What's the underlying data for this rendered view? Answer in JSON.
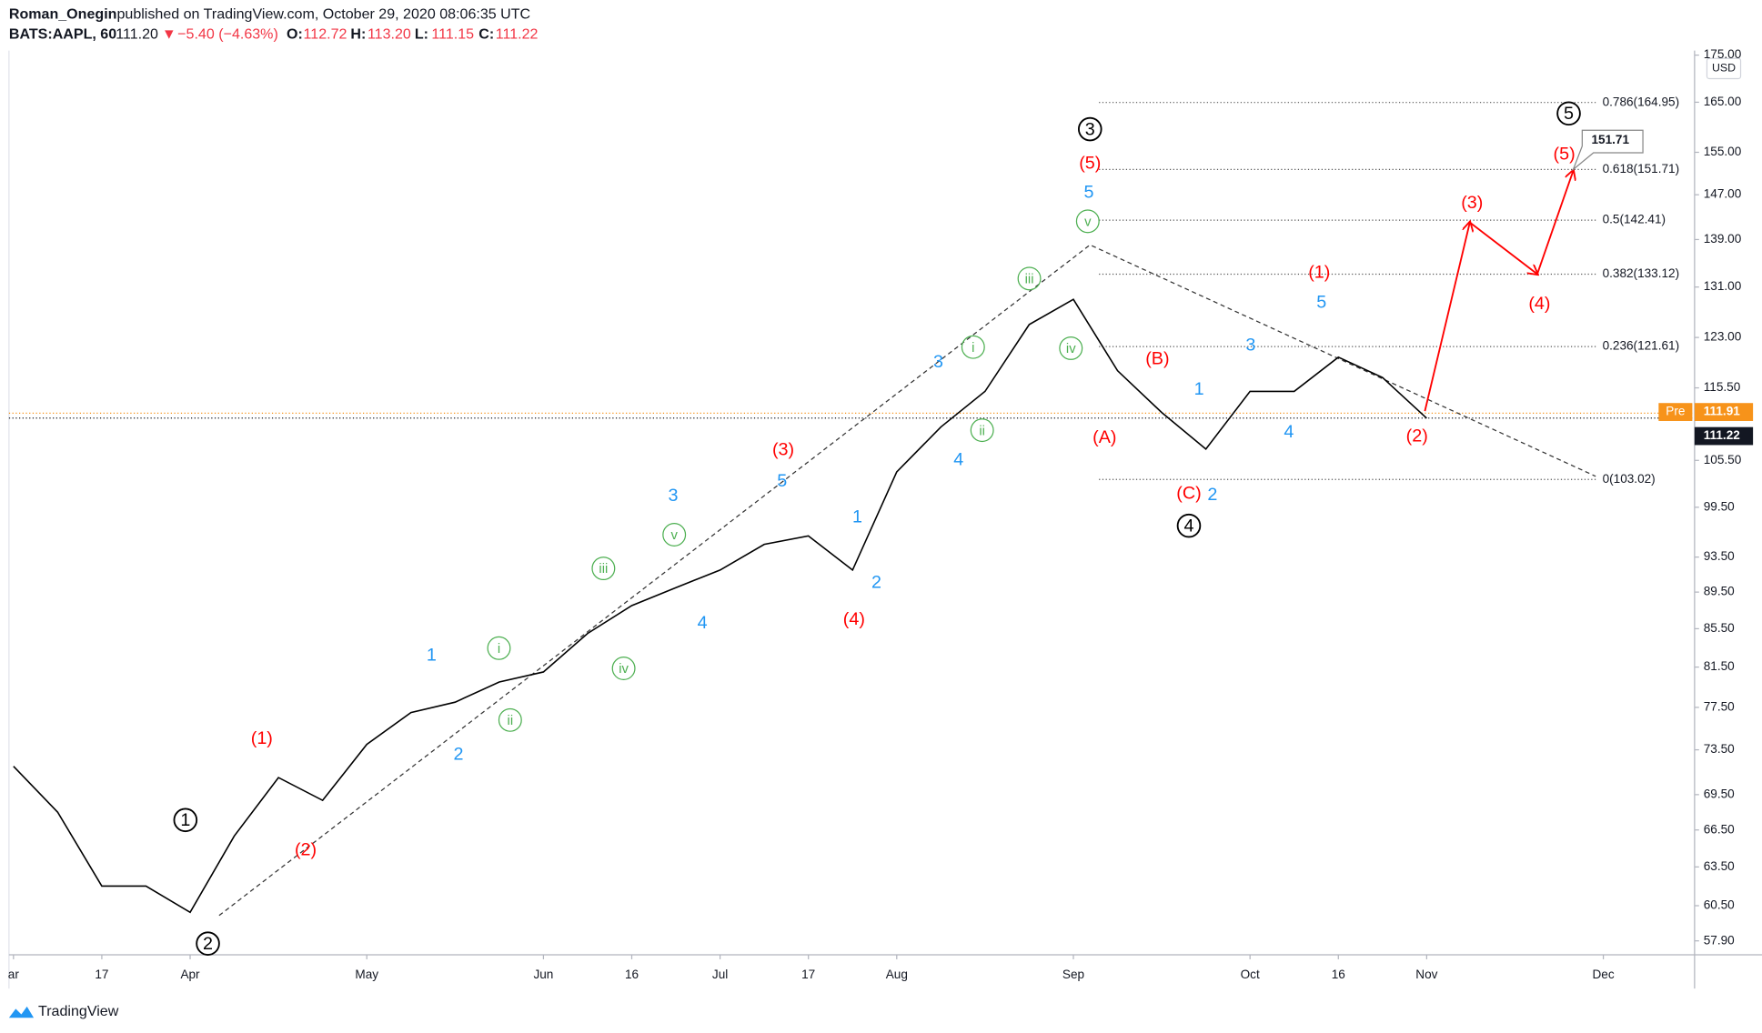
{
  "header": {
    "author": "Roman_Onegin",
    "published": "published on TradingView.com, October 29, 2020 08:06:35 UTC",
    "symbol": "BATS:AAPL, 60",
    "last": "111.20",
    "arrow": "▼",
    "change": "−5.40 (−4.63%)",
    "ohlc": [
      {
        "key": "O:",
        "value": "112.72"
      },
      {
        "key": "H:",
        "value": "113.20"
      },
      {
        "key": "L:",
        "value": "111.15"
      },
      {
        "key": "C:",
        "value": "111.22"
      }
    ]
  },
  "chart_data": {
    "type": "line",
    "color": "#000000",
    "log_scale": true,
    "currency": "USD",
    "categories": [
      "ar",
      null,
      "17",
      null,
      "Apr",
      null,
      null,
      null,
      "May",
      null,
      null,
      null,
      "Jun",
      null,
      "16",
      null,
      "Jul",
      null,
      "17",
      null,
      "Aug",
      null,
      null,
      null,
      "Sep",
      null,
      null,
      null,
      "Oct",
      null,
      "16",
      null,
      "Nov",
      null,
      null,
      null,
      "Dec"
    ],
    "values": [
      72,
      68,
      62,
      62,
      60,
      66,
      71,
      69,
      74,
      77,
      78,
      80,
      81,
      85,
      88,
      90,
      92,
      95,
      96,
      92,
      104,
      110,
      115,
      125,
      129,
      118,
      112,
      107,
      115,
      115,
      120,
      117,
      111.2,
      null,
      null,
      null,
      null
    ],
    "ylim": [
      56.9,
      176
    ],
    "yticks": [
      {
        "value": 175,
        "label": "175.00"
      },
      {
        "value": 165,
        "label": "165.00"
      },
      {
        "value": 155,
        "label": "155.00"
      },
      {
        "value": 147,
        "label": "147.00"
      },
      {
        "value": 139,
        "label": "139.00"
      },
      {
        "value": 131,
        "label": "131.00"
      },
      {
        "value": 123,
        "label": "123.00"
      },
      {
        "value": 115.5,
        "label": "115.50"
      },
      {
        "value": 105.5,
        "label": "105.50"
      },
      {
        "value": 99.5,
        "label": "99.50"
      },
      {
        "value": 93.5,
        "label": "93.50"
      },
      {
        "value": 89.5,
        "label": "89.50"
      },
      {
        "value": 85.5,
        "label": "85.50"
      },
      {
        "value": 81.5,
        "label": "81.50"
      },
      {
        "value": 77.5,
        "label": "77.50"
      },
      {
        "value": 73.5,
        "label": "73.50"
      },
      {
        "value": 69.5,
        "label": "69.50"
      },
      {
        "value": 66.5,
        "label": "66.50"
      },
      {
        "value": 63.5,
        "label": "63.50"
      },
      {
        "value": 60.5,
        "label": "60.50"
      },
      {
        "value": 57.9,
        "label": "57.90"
      }
    ],
    "price_lines": [
      {
        "label": "Pre",
        "value": 111.91,
        "color": "#f7931a"
      },
      {
        "value": 111.22,
        "color": "#131722"
      }
    ],
    "fib_levels": [
      {
        "label": "0.786(164.95)",
        "value": 164.95
      },
      {
        "label": "0.618(151.71)",
        "value": 151.71
      },
      {
        "label": "0.5(142.41)",
        "value": 142.41
      },
      {
        "label": "0.382(133.12)",
        "value": 133.12
      },
      {
        "label": "0.236(121.61)",
        "value": 121.61
      },
      {
        "label": "0(103.02)",
        "value": 103.02
      }
    ],
    "callout": {
      "value": 151.71
    },
    "wave_labels": [
      {
        "text": "1",
        "style": "circle-black"
      },
      {
        "text": "2",
        "style": "circle-black"
      },
      {
        "text": "3",
        "style": "circle-black"
      },
      {
        "text": "4",
        "style": "circle-black"
      },
      {
        "text": "5",
        "style": "circle-black"
      },
      {
        "text": "(1)",
        "style": "red"
      },
      {
        "text": "(2)",
        "style": "red"
      },
      {
        "text": "(3)",
        "style": "red"
      },
      {
        "text": "(4)",
        "style": "red"
      },
      {
        "text": "(5)",
        "style": "red"
      },
      {
        "text": "(A)",
        "style": "red"
      },
      {
        "text": "(B)",
        "style": "red"
      },
      {
        "text": "(C)",
        "style": "red"
      },
      {
        "text": "(1)",
        "style": "red"
      },
      {
        "text": "(2)",
        "style": "red"
      },
      {
        "text": "(3)",
        "style": "red"
      },
      {
        "text": "(4)",
        "style": "red"
      },
      {
        "text": "(5)",
        "style": "red"
      },
      {
        "text": "1",
        "style": "blue"
      },
      {
        "text": "2",
        "style": "blue"
      },
      {
        "text": "3",
        "style": "blue"
      },
      {
        "text": "4",
        "style": "blue"
      },
      {
        "text": "5",
        "style": "blue"
      },
      {
        "text": "1",
        "style": "blue"
      },
      {
        "text": "2",
        "style": "blue"
      },
      {
        "text": "3",
        "style": "blue"
      },
      {
        "text": "4",
        "style": "blue"
      },
      {
        "text": "5",
        "style": "blue"
      },
      {
        "text": "1",
        "style": "blue"
      },
      {
        "text": "2",
        "style": "blue"
      },
      {
        "text": "3",
        "style": "blue"
      },
      {
        "text": "4",
        "style": "blue"
      },
      {
        "text": "5",
        "style": "blue"
      },
      {
        "text": "i",
        "style": "circle-green"
      },
      {
        "text": "ii",
        "style": "circle-green"
      },
      {
        "text": "iii",
        "style": "circle-green"
      },
      {
        "text": "iv",
        "style": "circle-green"
      },
      {
        "text": "v",
        "style": "circle-green"
      },
      {
        "text": "i",
        "style": "circle-green"
      },
      {
        "text": "ii",
        "style": "circle-green"
      },
      {
        "text": "iii",
        "style": "circle-green"
      },
      {
        "text": "iv",
        "style": "circle-green"
      },
      {
        "text": "v",
        "style": "circle-green"
      }
    ]
  },
  "footer": {
    "brand": "TradingView"
  }
}
